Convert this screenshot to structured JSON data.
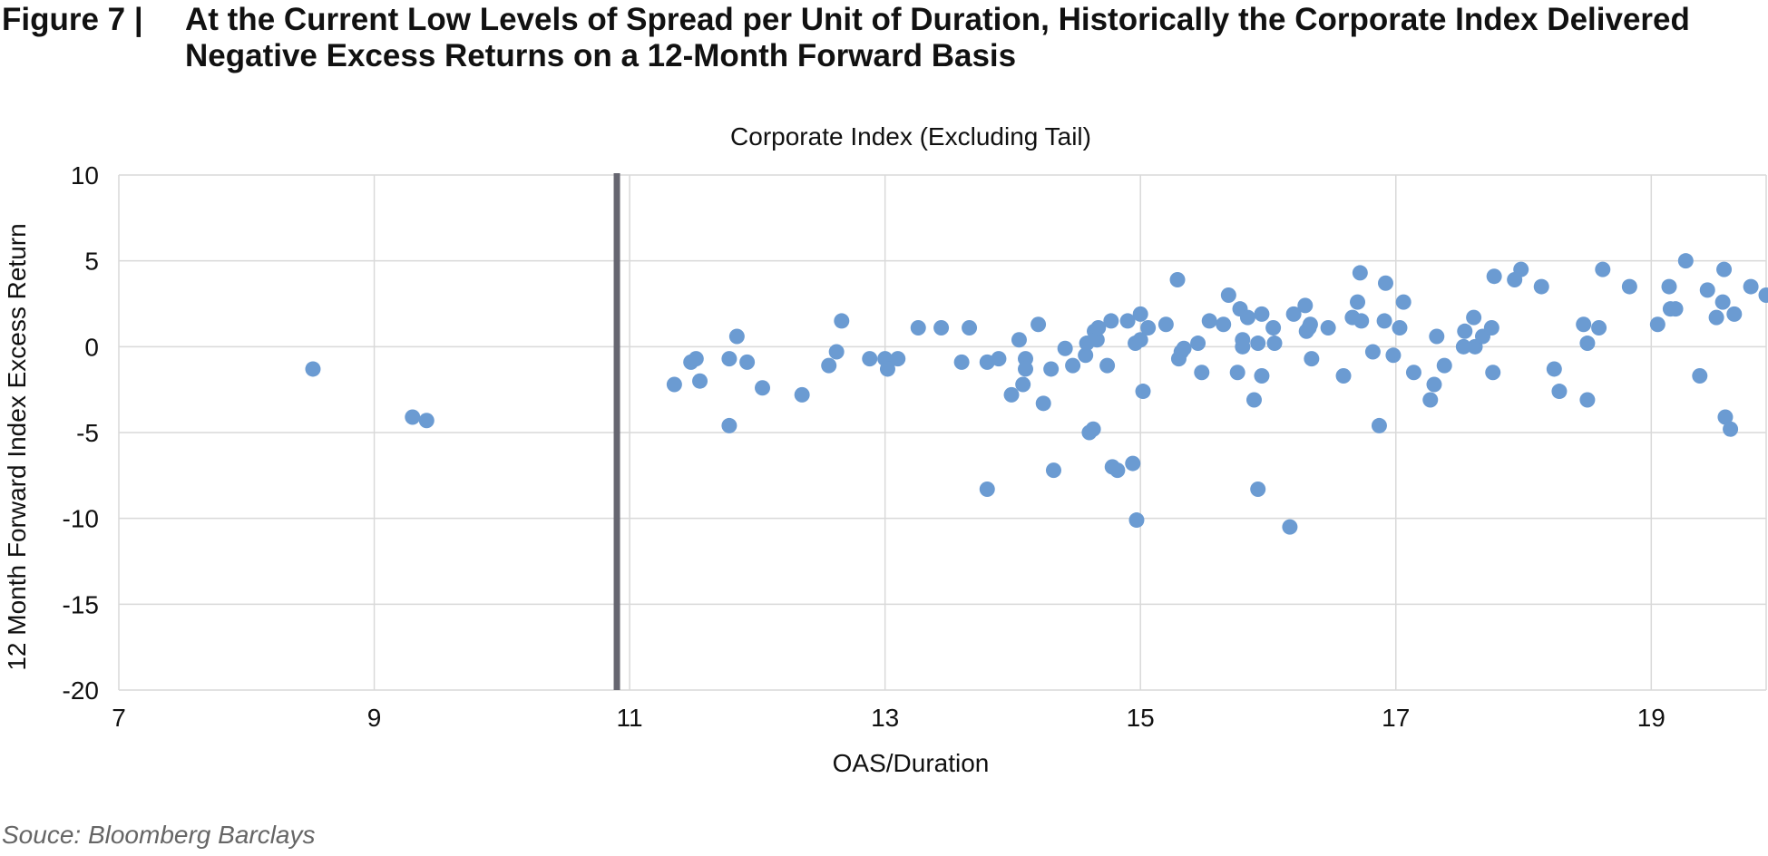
{
  "figure": {
    "label": "Figure 7  |",
    "title": "At the Current Low Levels of Spread per Unit of Duration, Historically the Corporate Index Delivered Negative Excess Returns on a 12-Month Forward Basis"
  },
  "source": "Souce: Bloomberg Barclays",
  "colors": {
    "points": "#6b9bd2",
    "grid": "#d9d9d9",
    "marker_line": "#666670",
    "text": "#111111"
  },
  "chart_data": {
    "type": "scatter",
    "title": "Corporate Index (Excluding Tail)",
    "xlabel": "OAS/Duration",
    "ylabel": "12 Month Forward Index Excess Return",
    "xlim": [
      7,
      19.9
    ],
    "ylim": [
      -20,
      10
    ],
    "x_ticks": [
      7,
      9,
      11,
      13,
      15,
      17,
      19
    ],
    "y_ticks": [
      10,
      5,
      0,
      -5,
      -10,
      -15,
      -20
    ],
    "x_tick_labels": [
      "7",
      "9",
      "11",
      "13",
      "15",
      "17",
      "19"
    ],
    "y_tick_labels": [
      "10",
      "5",
      "0",
      "-5",
      "-10",
      "-15",
      "-20"
    ],
    "grid": true,
    "reference_line_x": 10.9,
    "points": [
      [
        8.52,
        -1.3
      ],
      [
        9.3,
        -4.1
      ],
      [
        9.41,
        -4.3
      ],
      [
        11.35,
        -2.2
      ],
      [
        11.48,
        -0.9
      ],
      [
        11.52,
        -0.7
      ],
      [
        11.55,
        -2.0
      ],
      [
        11.78,
        -0.7
      ],
      [
        11.78,
        -4.6
      ],
      [
        11.84,
        0.6
      ],
      [
        11.92,
        -0.9
      ],
      [
        12.04,
        -2.4
      ],
      [
        12.35,
        -2.8
      ],
      [
        12.56,
        -1.1
      ],
      [
        12.62,
        -0.3
      ],
      [
        12.66,
        1.5
      ],
      [
        12.88,
        -0.7
      ],
      [
        13.0,
        -0.7
      ],
      [
        13.02,
        -1.3
      ],
      [
        13.1,
        -0.7
      ],
      [
        13.26,
        1.1
      ],
      [
        13.44,
        1.1
      ],
      [
        13.6,
        -0.9
      ],
      [
        13.66,
        1.1
      ],
      [
        13.8,
        -0.9
      ],
      [
        13.8,
        -8.3
      ],
      [
        13.89,
        -0.7
      ],
      [
        13.99,
        -2.8
      ],
      [
        14.05,
        0.4
      ],
      [
        14.08,
        -2.2
      ],
      [
        14.1,
        -0.7
      ],
      [
        14.1,
        -1.3
      ],
      [
        14.2,
        1.3
      ],
      [
        14.24,
        -3.3
      ],
      [
        14.3,
        -1.3
      ],
      [
        14.32,
        -7.2
      ],
      [
        14.41,
        -0.1
      ],
      [
        14.47,
        -1.1
      ],
      [
        14.57,
        -0.5
      ],
      [
        14.58,
        0.2
      ],
      [
        14.6,
        -5.0
      ],
      [
        14.63,
        -4.8
      ],
      [
        14.64,
        0.9
      ],
      [
        14.66,
        0.4
      ],
      [
        14.67,
        1.1
      ],
      [
        14.74,
        -1.1
      ],
      [
        14.77,
        1.5
      ],
      [
        14.78,
        -7.0
      ],
      [
        14.82,
        -7.2
      ],
      [
        14.9,
        1.5
      ],
      [
        14.94,
        -6.8
      ],
      [
        14.96,
        0.2
      ],
      [
        14.97,
        -10.1
      ],
      [
        15.0,
        0.4
      ],
      [
        15.0,
        1.9
      ],
      [
        15.02,
        -2.6
      ],
      [
        15.06,
        1.1
      ],
      [
        15.2,
        1.3
      ],
      [
        15.29,
        3.9
      ],
      [
        15.3,
        -0.7
      ],
      [
        15.32,
        -0.3
      ],
      [
        15.34,
        -0.1
      ],
      [
        15.45,
        0.2
      ],
      [
        15.48,
        -1.5
      ],
      [
        15.54,
        1.5
      ],
      [
        15.65,
        1.3
      ],
      [
        15.69,
        3.0
      ],
      [
        15.76,
        -1.5
      ],
      [
        15.78,
        2.2
      ],
      [
        15.8,
        0.4
      ],
      [
        15.8,
        0.0
      ],
      [
        15.84,
        1.7
      ],
      [
        15.89,
        -3.1
      ],
      [
        15.92,
        -8.3
      ],
      [
        15.92,
        0.2
      ],
      [
        15.95,
        1.9
      ],
      [
        15.95,
        -1.7
      ],
      [
        16.04,
        1.1
      ],
      [
        16.05,
        0.2
      ],
      [
        16.17,
        -10.5
      ],
      [
        16.2,
        1.9
      ],
      [
        16.29,
        2.4
      ],
      [
        16.3,
        0.9
      ],
      [
        16.32,
        1.1
      ],
      [
        16.33,
        1.3
      ],
      [
        16.34,
        -0.7
      ],
      [
        16.47,
        1.1
      ],
      [
        16.59,
        -1.7
      ],
      [
        16.66,
        1.7
      ],
      [
        16.7,
        2.6
      ],
      [
        16.72,
        4.3
      ],
      [
        16.73,
        1.5
      ],
      [
        16.82,
        -0.3
      ],
      [
        16.87,
        -4.6
      ],
      [
        16.91,
        1.5
      ],
      [
        16.92,
        3.7
      ],
      [
        16.98,
        -0.5
      ],
      [
        17.03,
        1.1
      ],
      [
        17.06,
        2.6
      ],
      [
        17.14,
        -1.5
      ],
      [
        17.27,
        -3.1
      ],
      [
        17.3,
        -2.2
      ],
      [
        17.32,
        0.6
      ],
      [
        17.38,
        -1.1
      ],
      [
        17.53,
        0.0
      ],
      [
        17.54,
        0.9
      ],
      [
        17.61,
        1.7
      ],
      [
        17.62,
        0.0
      ],
      [
        17.68,
        0.6
      ],
      [
        17.75,
        1.1
      ],
      [
        17.76,
        -1.5
      ],
      [
        17.77,
        4.1
      ],
      [
        17.93,
        3.9
      ],
      [
        17.98,
        4.5
      ],
      [
        18.14,
        3.5
      ],
      [
        18.24,
        -1.3
      ],
      [
        18.28,
        -2.6
      ],
      [
        18.47,
        1.3
      ],
      [
        18.5,
        0.2
      ],
      [
        18.5,
        -3.1
      ],
      [
        18.59,
        1.1
      ],
      [
        18.62,
        4.5
      ],
      [
        18.83,
        3.5
      ],
      [
        19.05,
        1.3
      ],
      [
        19.14,
        3.5
      ],
      [
        19.15,
        2.2
      ],
      [
        19.19,
        2.2
      ],
      [
        19.27,
        5.0
      ],
      [
        19.38,
        -1.7
      ],
      [
        19.44,
        3.3
      ],
      [
        19.51,
        1.7
      ],
      [
        19.56,
        2.6
      ],
      [
        19.57,
        4.5
      ],
      [
        19.58,
        -4.1
      ],
      [
        19.62,
        -4.8
      ],
      [
        19.65,
        1.9
      ],
      [
        19.78,
        3.5
      ],
      [
        19.9,
        3.0
      ]
    ]
  }
}
